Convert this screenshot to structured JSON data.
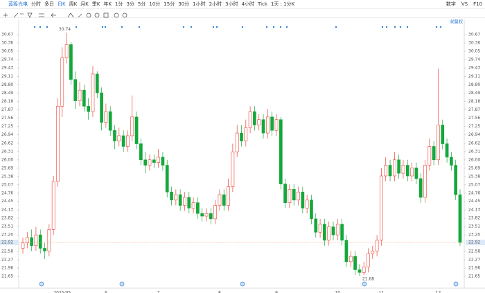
{
  "toolbar": {
    "symbol": "蓝筹光电",
    "periods": [
      "分时",
      "多日",
      "日K",
      "周K",
      "月K",
      "季K",
      "年K",
      "1分",
      "3分",
      "5分",
      "10分",
      "15分",
      "30分",
      "1小时",
      "2小时",
      "3小时",
      "4小时",
      "Tick",
      "1天 : 1分K"
    ],
    "active": 2,
    "right": [
      "数字",
      "VS",
      "F10"
    ],
    "adjust": "前复权"
  },
  "chart_data": {
    "type": "candlestick",
    "categories": [
      null,
      null,
      null,
      null,
      null,
      null,
      null,
      null,
      null,
      "2025/05",
      null,
      null,
      null,
      null,
      null,
      null,
      null,
      null,
      null,
      "6",
      null,
      null,
      null,
      null,
      null,
      null,
      null,
      null,
      null,
      null,
      null,
      "7",
      null,
      null,
      null,
      null,
      null,
      null,
      null,
      null,
      null,
      null,
      null,
      null,
      null,
      "8",
      null,
      null,
      null,
      null,
      null,
      null,
      null,
      null,
      null,
      null,
      null,
      null,
      "9",
      null,
      null,
      null,
      null,
      null,
      null,
      null,
      null,
      null,
      null,
      null,
      null,
      null,
      "10",
      null,
      null,
      null,
      null,
      null,
      null,
      null,
      null,
      null,
      "11",
      null,
      null,
      null,
      null,
      null,
      null,
      null,
      null,
      null,
      null,
      null,
      null,
      "12",
      null,
      null,
      null,
      null,
      null
    ],
    "open": [
      22.7,
      22.9,
      23.1,
      22.8,
      23.2,
      22.7,
      22.6,
      23.4,
      25.2,
      28.0,
      29.8,
      30.3,
      29.0,
      28.2,
      28.6,
      28.0,
      27.8,
      29.2,
      28.5,
      27.4,
      27.8,
      27.1,
      26.7,
      26.9,
      26.5,
      26.9,
      27.6,
      26.6,
      26.0,
      25.8,
      26.0,
      25.9,
      26.1,
      25.8,
      24.8,
      24.5,
      24.7,
      24.3,
      24.6,
      24.2,
      24.4,
      24.0,
      23.9,
      24.0,
      23.8,
      24.3,
      24.7,
      24.3,
      25.0,
      26.3,
      27.0,
      26.7,
      27.2,
      27.8,
      27.3,
      27.5,
      27.0,
      27.6,
      27.1,
      27.5,
      25.1,
      24.4,
      24.9,
      24.5,
      24.8,
      24.2,
      24.5,
      23.8,
      23.3,
      23.6,
      23.0,
      23.5,
      23.2,
      23.6,
      23.0,
      22.2,
      22.4,
      21.9,
      21.8,
      22.0,
      22.5,
      22.6,
      23.0,
      25.4,
      25.8,
      25.4,
      26.0,
      25.5,
      25.8,
      25.4,
      25.7,
      25.3,
      24.6,
      25.8,
      26.5,
      26.0,
      27.3,
      26.6,
      26.1,
      25.8,
      24.7
    ],
    "high": [
      23.1,
      23.3,
      23.4,
      23.5,
      23.4,
      22.9,
      23.6,
      25.4,
      28.3,
      30.2,
      30.74,
      30.4,
      29.3,
      28.9,
      28.8,
      28.3,
      29.5,
      29.3,
      28.7,
      28.1,
      28.0,
      27.3,
      27.2,
      27.1,
      27.1,
      28.4,
      27.8,
      26.8,
      26.3,
      26.2,
      26.2,
      26.4,
      26.3,
      26.0,
      25.0,
      24.9,
      24.9,
      24.8,
      24.8,
      24.6,
      24.6,
      24.2,
      24.2,
      24.2,
      24.5,
      24.9,
      24.9,
      25.3,
      26.6,
      27.3,
      27.3,
      27.5,
      28.0,
      28.0,
      27.7,
      27.7,
      27.9,
      27.8,
      27.7,
      27.6,
      25.3,
      25.1,
      25.1,
      25.0,
      25.0,
      24.7,
      24.7,
      24.0,
      23.8,
      23.8,
      23.7,
      23.7,
      23.8,
      23.8,
      23.2,
      22.6,
      22.6,
      22.1,
      22.2,
      22.7,
      22.8,
      23.2,
      25.7,
      26.1,
      26.0,
      26.3,
      26.2,
      26.0,
      26.0,
      25.9,
      25.9,
      25.5,
      26.0,
      26.8,
      26.7,
      29.4,
      27.5,
      26.8,
      26.3,
      26.0,
      24.9
    ],
    "low": [
      22.5,
      22.7,
      22.6,
      22.6,
      22.5,
      22.3,
      22.4,
      23.2,
      25.0,
      27.6,
      29.6,
      28.8,
      27.9,
      28.0,
      27.8,
      27.5,
      27.6,
      28.3,
      27.1,
      27.2,
      26.9,
      26.4,
      26.5,
      26.3,
      26.3,
      26.7,
      26.4,
      25.8,
      25.5,
      25.6,
      25.7,
      25.7,
      25.6,
      24.6,
      24.3,
      24.3,
      24.1,
      24.1,
      24.0,
      24.0,
      23.8,
      23.7,
      23.7,
      23.6,
      23.6,
      24.1,
      24.1,
      24.1,
      24.8,
      26.1,
      26.5,
      26.5,
      27.0,
      27.1,
      27.1,
      26.8,
      26.8,
      26.9,
      26.9,
      24.9,
      24.2,
      24.2,
      24.3,
      24.3,
      24.0,
      24.0,
      23.6,
      23.1,
      23.1,
      22.8,
      22.8,
      23.0,
      23.0,
      22.8,
      22.0,
      22.0,
      21.7,
      21.68,
      21.7,
      21.8,
      22.3,
      22.4,
      22.8,
      25.2,
      25.2,
      25.2,
      25.3,
      25.3,
      25.2,
      25.2,
      25.1,
      24.4,
      24.4,
      25.6,
      25.8,
      25.8,
      26.4,
      25.9,
      25.6,
      24.5,
      22.8
    ],
    "close": [
      22.9,
      23.1,
      22.8,
      23.2,
      22.7,
      22.6,
      23.4,
      25.2,
      28.0,
      29.8,
      30.3,
      29.0,
      28.2,
      28.6,
      28.0,
      27.8,
      29.2,
      28.5,
      27.4,
      27.8,
      27.1,
      26.7,
      26.9,
      26.5,
      26.9,
      27.6,
      26.6,
      26.0,
      25.8,
      26.0,
      25.9,
      26.1,
      25.8,
      24.8,
      24.5,
      24.7,
      24.3,
      24.6,
      24.2,
      24.4,
      24.0,
      23.9,
      24.0,
      23.8,
      24.3,
      24.7,
      24.3,
      25.0,
      26.3,
      27.0,
      26.7,
      27.2,
      27.8,
      27.3,
      27.5,
      27.0,
      27.6,
      27.1,
      27.5,
      25.1,
      24.4,
      24.9,
      24.5,
      24.8,
      24.2,
      24.5,
      23.8,
      23.3,
      23.6,
      23.0,
      23.5,
      23.2,
      23.6,
      23.0,
      22.2,
      22.4,
      21.9,
      21.8,
      22.0,
      22.5,
      22.6,
      23.0,
      25.4,
      25.8,
      25.4,
      26.0,
      25.5,
      25.8,
      25.4,
      25.7,
      25.3,
      24.6,
      25.8,
      26.5,
      26.0,
      27.3,
      26.6,
      26.1,
      25.8,
      24.7,
      22.92
    ],
    "up_color": "#ef4136",
    "down_color": "#14a83c",
    "ylim": [
      21.42,
      31.24
    ],
    "yticks": [
      30.67,
      30.36,
      30.05,
      29.74,
      29.43,
      29.11,
      {
        "value": 28.8,
        "label": "28.80"
      },
      28.49,
      28.18,
      27.87,
      27.56,
      27.25,
      26.94,
      26.62,
      26.31,
      {
        "value": 26.0,
        "label": "26.00"
      },
      25.69,
      25.38,
      25.07,
      24.76,
      24.45,
      24.13,
      23.82,
      23.51,
      {
        "value": 23.2,
        "label": "23.20"
      },
      22.58,
      22.27,
      21.96,
      21.65
    ]
  }
}
